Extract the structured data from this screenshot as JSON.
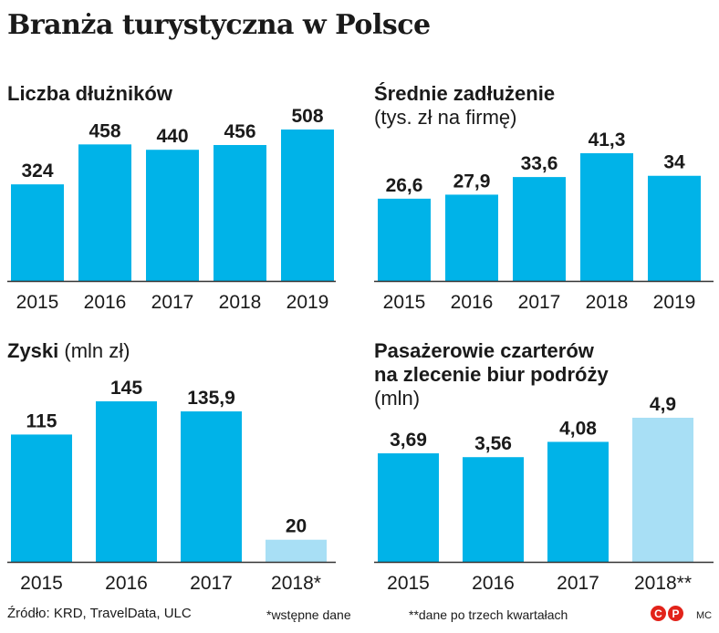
{
  "title": "Branża turystyczna w Polsce",
  "panels": {
    "debtors": {
      "title": "Liczba dłużników"
    },
    "debt": {
      "title": "Średnie zadłużenie",
      "subtitle": "(tys. zł na firmę)"
    },
    "profits": {
      "title": "Zyski",
      "title_unit": "(mln zł)"
    },
    "passengers": {
      "title_line1": "Pasażerowie czarterów",
      "title_line2": "na zlecenie biur podróży",
      "subtitle": "(mln)"
    }
  },
  "colors": {
    "bar": "#00b3e8",
    "bar_estimate": "#a8dff5",
    "axis": "#333333"
  },
  "chart_data": [
    {
      "type": "bar",
      "title": "Liczba dłużników",
      "categories": [
        "2015",
        "2016",
        "2017",
        "2018",
        "2019"
      ],
      "values": [
        324,
        458,
        440,
        456,
        508
      ],
      "labels": [
        "324",
        "458",
        "440",
        "456",
        "508"
      ],
      "ylim": [
        0,
        508
      ]
    },
    {
      "type": "bar",
      "title": "Średnie zadłużenie",
      "subtitle": "(tys. zł na firmę)",
      "categories": [
        "2015",
        "2016",
        "2017",
        "2018",
        "2019"
      ],
      "values": [
        26.6,
        27.9,
        33.6,
        41.3,
        34
      ],
      "labels": [
        "26,6",
        "27,9",
        "33,6",
        "41,3",
        "34"
      ],
      "ylim": [
        0,
        41.3
      ]
    },
    {
      "type": "bar",
      "title": "Zyski (mln zł)",
      "categories": [
        "2015",
        "2016",
        "2017",
        "2018*"
      ],
      "values": [
        115,
        145,
        135.9,
        20
      ],
      "labels": [
        "115",
        "145",
        "135,9",
        "20"
      ],
      "estimate": [
        false,
        false,
        false,
        true
      ],
      "ylim": [
        0,
        145
      ]
    },
    {
      "type": "bar",
      "title": "Pasażerowie czarterów na zlecenie biur podróży (mln)",
      "categories": [
        "2015",
        "2016",
        "2017",
        "2018**"
      ],
      "values": [
        3.69,
        3.56,
        4.08,
        4.9
      ],
      "labels": [
        "3,69",
        "3,56",
        "4,08",
        "4,9"
      ],
      "estimate": [
        false,
        false,
        false,
        true
      ],
      "ylim": [
        0,
        4.9
      ]
    }
  ],
  "footer": {
    "source": "Źródło: KRD, TravelData, ULC",
    "note1": "*wstępne dane",
    "note2": "**dane po trzech kwartałach",
    "copyright_c": "C",
    "copyright_p": "P",
    "author": "MC"
  }
}
